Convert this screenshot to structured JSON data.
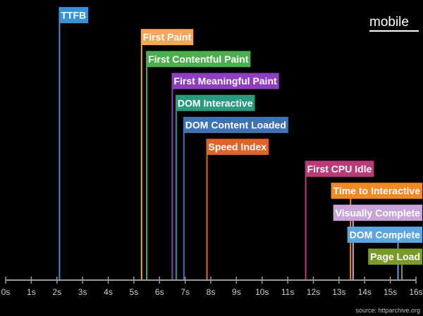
{
  "chart_data": {
    "type": "timeline",
    "title": "mobile",
    "source": "source: httparchive.org",
    "xlim": [
      0,
      16
    ],
    "x_ticks": [
      "0s",
      "1s",
      "2s",
      "3s",
      "4s",
      "5s",
      "6s",
      "7s",
      "8s",
      "9s",
      "10s",
      "11s",
      "12s",
      "13s",
      "14s",
      "15s",
      "16s"
    ],
    "grid": false,
    "legend": "none",
    "milestones": [
      {
        "label": "TTFB",
        "x": 2.1,
        "color": "#3b8fd4"
      },
      {
        "label": "First Paint",
        "x": 5.3,
        "color": "#f5a65b"
      },
      {
        "label": "First Contentful Paint",
        "x": 5.5,
        "color": "#4cae4f"
      },
      {
        "label": "First Meaningful Paint",
        "x": 6.5,
        "color": "#8e3fbf"
      },
      {
        "label": "DOM Interactive",
        "x": 6.65,
        "color": "#2a9a7f"
      },
      {
        "label": "DOM Content Loaded",
        "x": 6.95,
        "color": "#3e72b0"
      },
      {
        "label": "Speed Index",
        "x": 7.85,
        "color": "#e0642a"
      },
      {
        "label": "First CPU Idle",
        "x": 11.7,
        "color": "#b83b7a"
      },
      {
        "label": "Time to Interactive",
        "x": 13.45,
        "color": "#f08a24"
      },
      {
        "label": "Visually Complete",
        "x": 13.55,
        "color": "#c8a4d8"
      },
      {
        "label": "DOM Complete",
        "x": 15.3,
        "color": "#5aa6e0"
      },
      {
        "label": "Page Load",
        "x": 15.45,
        "color": "#7a9a2a"
      }
    ]
  }
}
